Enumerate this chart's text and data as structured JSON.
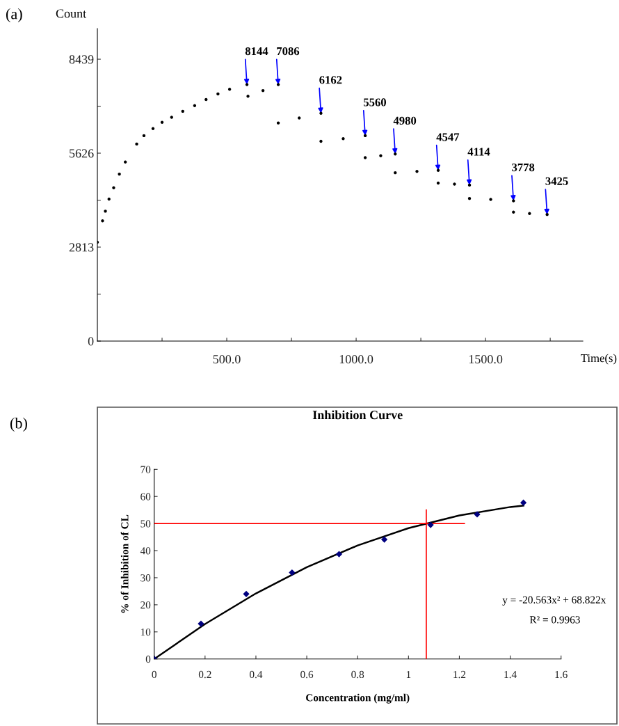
{
  "chart_data": [
    {
      "type": "scatter",
      "ylabel": "Count",
      "xlabel": "Time(s)",
      "xlim": [
        0,
        1876
      ],
      "ylim": [
        0,
        9357
      ],
      "xticks": [
        {
          "value": 250,
          "label": null
        },
        {
          "value": 500,
          "label": "500.0"
        },
        {
          "value": 750,
          "label": null
        },
        {
          "value": 1000,
          "label": "1000.0"
        },
        {
          "value": 1250,
          "label": null
        },
        {
          "value": 1500,
          "label": "1500.0"
        },
        {
          "value": 1750,
          "label": null
        }
      ],
      "yticks": [
        0,
        {
          "value": 1406.5,
          "label": null
        },
        2813,
        {
          "value": 4219.5,
          "label": null
        },
        5626,
        {
          "value": 7032.5,
          "label": null
        },
        8439
      ],
      "marker": "circle",
      "grid": false,
      "legend": false,
      "series": [
        {
          "color": "#000000",
          "x": [
            0,
            20,
            31,
            45,
            63,
            85,
            108,
            152,
            180,
            215,
            250,
            287,
            330,
            376,
            420,
            466,
            511,
            578,
            582,
            640,
            699,
            699,
            780,
            864,
            864,
            950,
            1035,
            1035,
            1095,
            1151,
            1151,
            1235,
            1317,
            1317,
            1380,
            1438,
            1438,
            1520,
            1608,
            1608,
            1670,
            1738
          ],
          "values": [
            2960,
            3600,
            3890,
            4250,
            4590,
            5000,
            5360,
            5900,
            6150,
            6360,
            6550,
            6700,
            6880,
            7050,
            7230,
            7400,
            7540,
            7680,
            7330,
            7500,
            7680,
            6530,
            6680,
            6820,
            5980,
            6060,
            6150,
            5490,
            5550,
            5600,
            5040,
            5080,
            5110,
            4730,
            4700,
            4670,
            4270,
            4240,
            4200,
            3860,
            3820,
            3790
          ]
        }
      ],
      "annotations": [
        "(a)",
        {
          "text": "8144",
          "x": 578,
          "y": 7680
        },
        {
          "text": "7086",
          "x": 699,
          "y": 7680
        },
        {
          "text": "6162",
          "x": 864,
          "y": 6820
        },
        {
          "text": "5560",
          "x": 1035,
          "y": 6150
        },
        {
          "text": "4980",
          "x": 1151,
          "y": 5600
        },
        {
          "text": "4547",
          "x": 1317,
          "y": 5110
        },
        {
          "text": "4114",
          "x": 1438,
          "y": 4670
        },
        {
          "text": "3778",
          "x": 1608,
          "y": 4200
        },
        {
          "text": "3425",
          "x": 1738,
          "y": 3790
        }
      ]
    },
    {
      "type": "scatter",
      "title": "Inhibition Curve",
      "xlabel": "Concentration (mg/ml)",
      "ylabel": "% of Inhibition of CL",
      "xlim": [
        0,
        1.6
      ],
      "ylim": [
        0,
        70
      ],
      "xticks": [
        0,
        0.2,
        0.4,
        0.6,
        0.8,
        1,
        1.2,
        1.4,
        1.6
      ],
      "yticks": [
        0,
        10,
        20,
        30,
        40,
        50,
        60,
        70
      ],
      "grid": false,
      "legend": false,
      "series": [
        {
          "type": "line",
          "color": "#000000",
          "x": [
            0,
            0.2,
            0.4,
            0.6,
            0.8,
            1.0,
            1.2,
            1.4,
            1.452
          ],
          "values": [
            0,
            12.9,
            24.2,
            33.9,
            41.9,
            48.3,
            53.0,
            56.1,
            56.6
          ]
        },
        {
          "type": "line",
          "color": "#ff0000",
          "x": [
            0,
            1.22
          ],
          "values": [
            50,
            50
          ]
        },
        {
          "type": "line",
          "color": "#ff0000",
          "x": [
            1.07,
            1.07
          ],
          "values": [
            0,
            55
          ]
        },
        {
          "type": "scatter",
          "marker": "diamond",
          "color": "#000080",
          "x": [
            0,
            0.184,
            0.362,
            0.542,
            0.727,
            0.905,
            1.087,
            1.27,
            1.452
          ],
          "values": [
            0,
            13.0,
            24.0,
            31.9,
            38.7,
            44.1,
            49.5,
            53.4,
            57.7
          ]
        }
      ],
      "annotations": [
        "(b)",
        "y = -20.563x² + 68.822x",
        "R² = 0.9963"
      ]
    }
  ]
}
